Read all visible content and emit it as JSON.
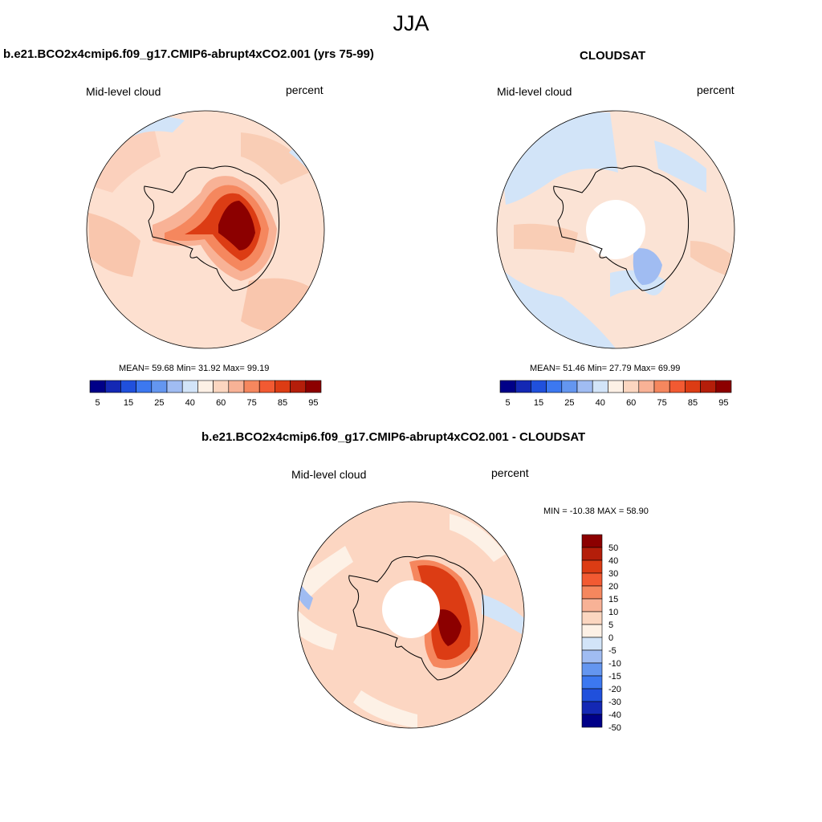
{
  "figure": {
    "season": "JJA"
  },
  "panels": [
    {
      "title": "b.e21.BCO2x4cmip6.f09_g17.CMIP6-abrupt4xCO2.001 (yrs 75-99)",
      "left_label": "Mid-level cloud",
      "right_label": "percent",
      "stats": "MEAN=  59.68  Min=  31.92  Max=  99.19",
      "background_color": "#fde0d0",
      "has_polar_hole": false
    },
    {
      "title": "CLOUDSAT",
      "left_label": "Mid-level cloud",
      "right_label": "percent",
      "stats": "MEAN=  51.46  Min=  27.79  Max=  69.99",
      "background_color": "#fbe3d5",
      "has_polar_hole": true
    },
    {
      "title": "b.e21.BCO2x4cmip6.f09_g17.CMIP6-abrupt4xCO2.001 - CLOUDSAT",
      "left_label": "Mid-level cloud",
      "right_label": "percent",
      "stats": "MIN = -10.38 MAX =  58.90",
      "background_color": "#fcd6c2",
      "has_polar_hole": true
    }
  ],
  "colorbar_abs": {
    "colors": [
      "#000088",
      "#1428b4",
      "#2050dc",
      "#3c78f0",
      "#6496f0",
      "#a0bcf2",
      "#d2e4f8",
      "#fdf1e6",
      "#fbd6c0",
      "#f8b296",
      "#f5875e",
      "#f25a32",
      "#dc3c14",
      "#b41e0a",
      "#8c0000"
    ],
    "tick_labels": [
      "5",
      "15",
      "25",
      "40",
      "60",
      "75",
      "85",
      "95"
    ]
  },
  "colorbar_diff": {
    "colors": [
      "#8c0000",
      "#b41e0a",
      "#dc3c14",
      "#f25a32",
      "#f5875e",
      "#f8b296",
      "#fbd6c0",
      "#fdf1e6",
      "#d2e4f8",
      "#a0bcf2",
      "#6496f0",
      "#3c78f0",
      "#2050dc",
      "#1428b4",
      "#000088"
    ],
    "tick_labels": [
      "50",
      "40",
      "30",
      "20",
      "15",
      "10",
      "5",
      "0",
      "-5",
      "-10",
      "-15",
      "-20",
      "-30",
      "-40",
      "-50"
    ]
  }
}
